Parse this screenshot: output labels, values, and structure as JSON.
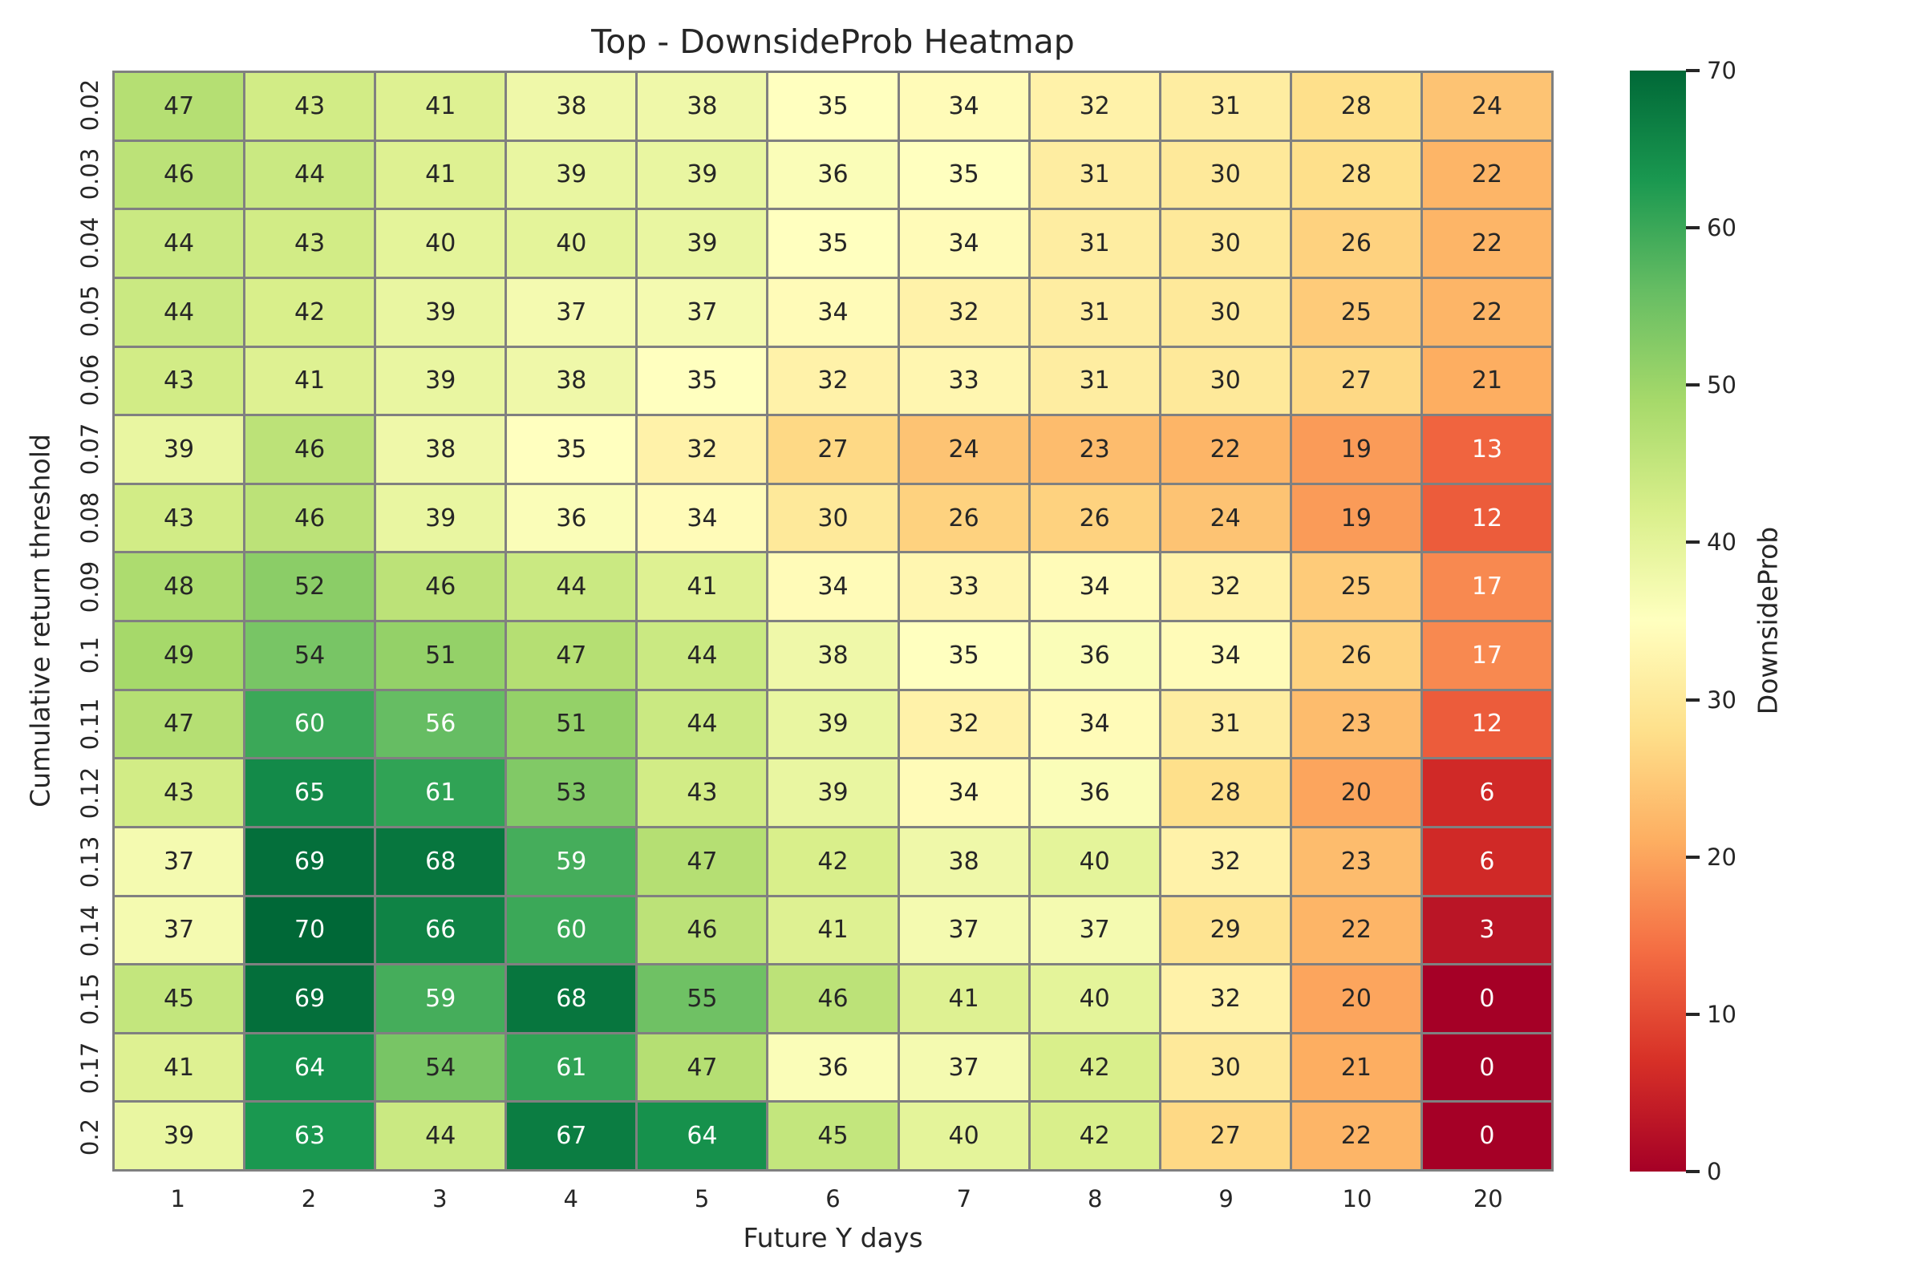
{
  "chart_data": {
    "type": "heatmap",
    "title": "Top - DownsideProb Heatmap",
    "xlabel": "Future Y days",
    "ylabel": "Cumulative return threshold",
    "x_categories": [
      "1",
      "2",
      "3",
      "4",
      "5",
      "6",
      "7",
      "8",
      "9",
      "10",
      "20"
    ],
    "y_categories": [
      "0.02",
      "0.03",
      "0.04",
      "0.05",
      "0.06",
      "0.07",
      "0.08",
      "0.09",
      "0.1",
      "0.11",
      "0.12",
      "0.13",
      "0.14",
      "0.15",
      "0.17",
      "0.2"
    ],
    "values": [
      [
        47,
        43,
        41,
        38,
        38,
        35,
        34,
        32,
        31,
        28,
        24
      ],
      [
        46,
        44,
        41,
        39,
        39,
        36,
        35,
        31,
        30,
        28,
        22
      ],
      [
        44,
        43,
        40,
        40,
        39,
        35,
        34,
        31,
        30,
        26,
        22
      ],
      [
        44,
        42,
        39,
        37,
        37,
        34,
        32,
        31,
        30,
        25,
        22
      ],
      [
        43,
        41,
        39,
        38,
        35,
        32,
        33,
        31,
        30,
        27,
        21
      ],
      [
        39,
        46,
        38,
        35,
        32,
        27,
        24,
        23,
        22,
        19,
        13
      ],
      [
        43,
        46,
        39,
        36,
        34,
        30,
        26,
        26,
        24,
        19,
        12
      ],
      [
        48,
        52,
        46,
        44,
        41,
        34,
        33,
        34,
        32,
        25,
        17
      ],
      [
        49,
        54,
        51,
        47,
        44,
        38,
        35,
        36,
        34,
        26,
        17
      ],
      [
        47,
        60,
        56,
        51,
        44,
        39,
        32,
        34,
        31,
        23,
        12
      ],
      [
        43,
        65,
        61,
        53,
        43,
        39,
        34,
        36,
        28,
        20,
        6
      ],
      [
        37,
        69,
        68,
        59,
        47,
        42,
        38,
        40,
        32,
        23,
        6
      ],
      [
        37,
        70,
        66,
        60,
        46,
        41,
        37,
        37,
        29,
        22,
        3
      ],
      [
        45,
        69,
        59,
        68,
        55,
        46,
        41,
        40,
        32,
        20,
        0
      ],
      [
        41,
        64,
        54,
        61,
        47,
        36,
        37,
        42,
        30,
        21,
        0
      ],
      [
        39,
        63,
        44,
        67,
        64,
        45,
        40,
        42,
        27,
        22,
        0
      ]
    ],
    "vmin": 0,
    "vmax": 70,
    "colormap": "RdYlGn",
    "annotated": true,
    "grid_line_color": "#808080",
    "colorbar": {
      "label": "DownsideProb",
      "ticks": [
        0,
        10,
        20,
        30,
        40,
        50,
        60,
        70
      ],
      "position": "right"
    },
    "text_color_dark": "#262626",
    "text_color_light": "#ffffff",
    "background": "#ffffff"
  }
}
